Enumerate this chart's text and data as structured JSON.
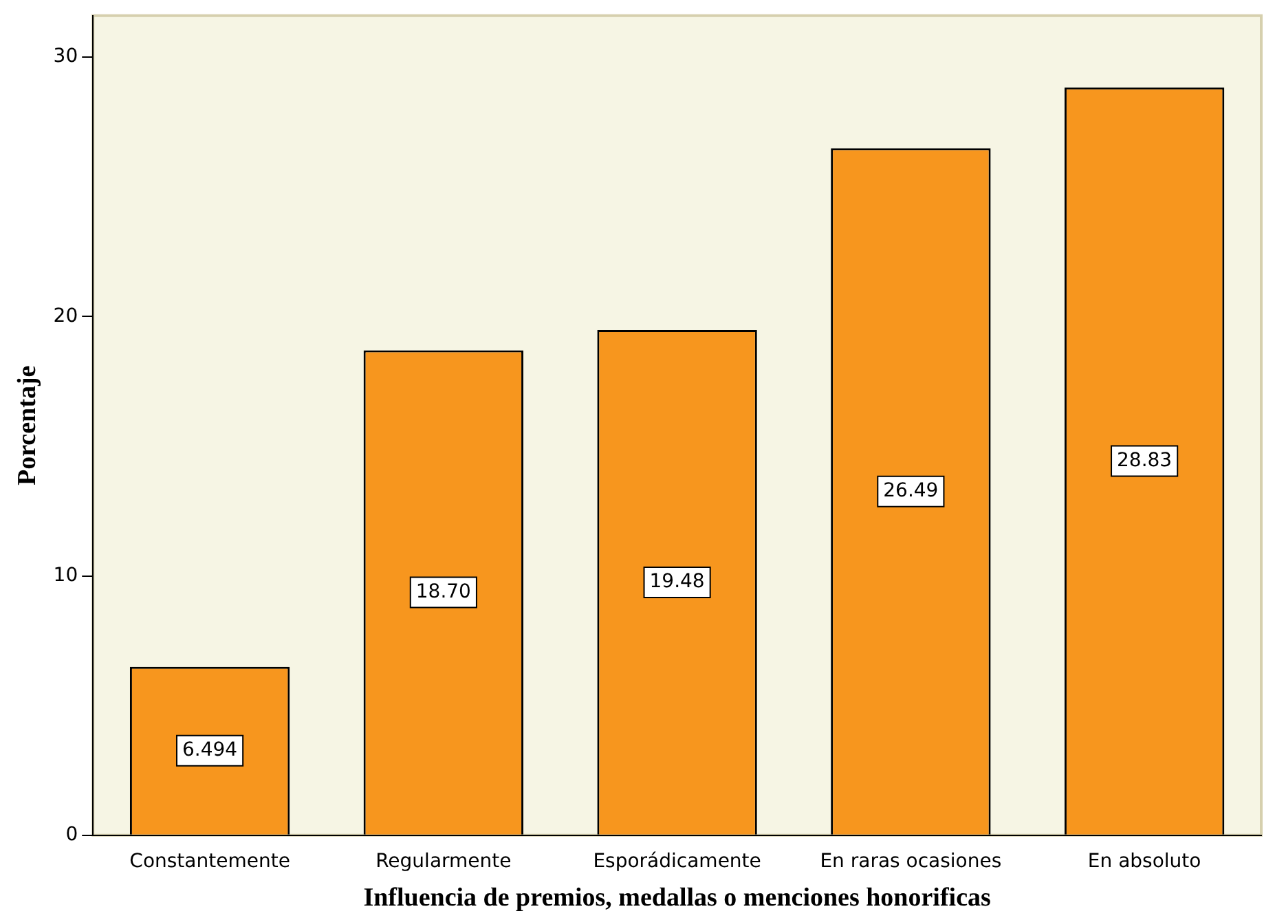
{
  "chart_data": {
    "type": "bar",
    "xlabel": "Influencia de premios, medallas o menciones honorificas",
    "ylabel": "Porcentaje",
    "categories": [
      "Constantemente",
      "Regularmente",
      "Esporádicamente",
      "En raras ocasiones",
      "En absoluto"
    ],
    "values": [
      6.494,
      18.7,
      19.48,
      26.49,
      28.83
    ],
    "value_labels": [
      "6.494",
      "18.70",
      "19.48",
      "26.49",
      "28.83"
    ],
    "color": "#f7961e",
    "ylim": [
      0,
      31.6
    ],
    "yticks": [
      0,
      10,
      20,
      30
    ],
    "grid": false,
    "legend": false
  }
}
